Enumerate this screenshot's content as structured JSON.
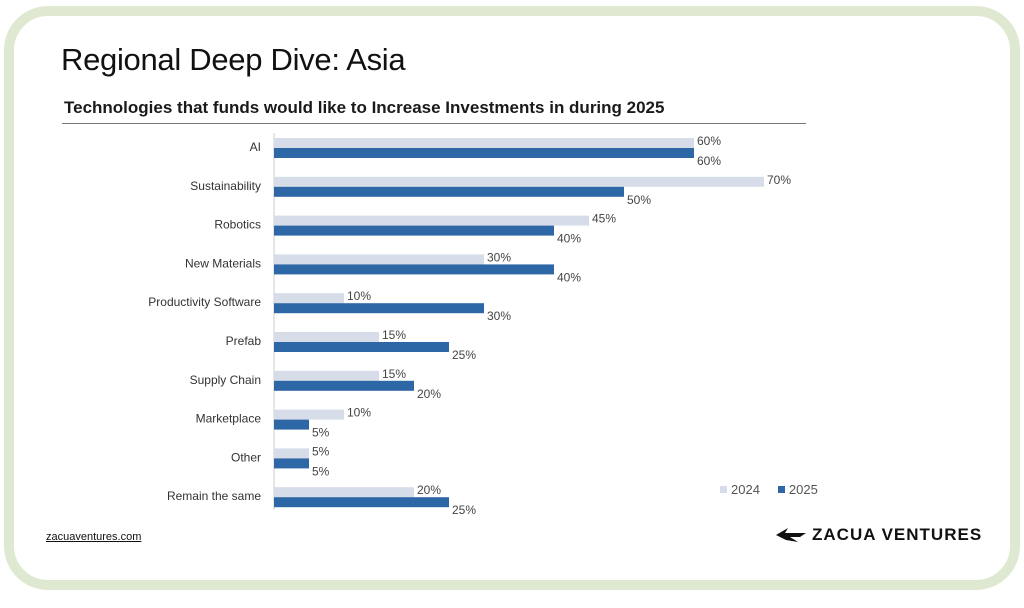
{
  "page_title": "Regional Deep Dive: Asia",
  "footer_link": "zacuaventures.com",
  "logo_text": "ZACUA VENTURES",
  "chart_data": {
    "type": "bar",
    "orientation": "horizontal",
    "title": "Technologies that funds would like to Increase Investments in during 2025",
    "categories": [
      "AI",
      "Sustainability",
      "Robotics",
      "New Materials",
      "Productivity Software",
      "Prefab",
      "Supply Chain",
      "Marketplace",
      "Other",
      "Remain the same"
    ],
    "series": [
      {
        "name": "2024",
        "color": "#d6dce8",
        "values": [
          60,
          70,
          45,
          30,
          10,
          15,
          15,
          10,
          5,
          20
        ]
      },
      {
        "name": "2025",
        "color": "#2e67a6",
        "values": [
          60,
          50,
          40,
          40,
          30,
          25,
          20,
          5,
          5,
          25
        ]
      }
    ],
    "value_suffix": "%",
    "xlim": [
      0,
      100
    ],
    "grid": false,
    "legend_position": "bottom-right"
  }
}
